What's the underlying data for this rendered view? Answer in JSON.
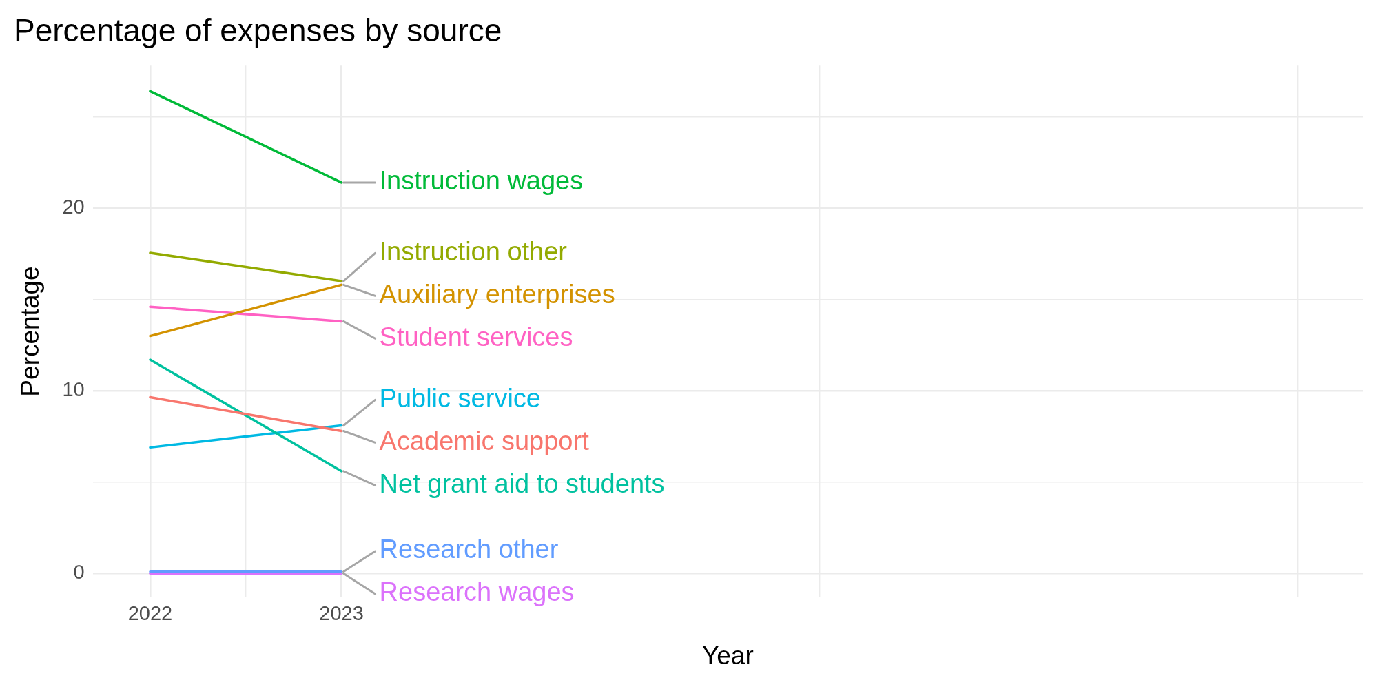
{
  "chart_data": {
    "type": "line",
    "title": "Percentage of expenses by source",
    "xlabel": "Year",
    "ylabel": "Percentage",
    "x": [
      2022,
      2023
    ],
    "xlim": [
      2021.7,
      2028.34
    ],
    "xticks": [
      2022,
      {
        "value": 2022.5,
        "label": null
      },
      2023,
      {
        "value": 2025.5,
        "label": null
      },
      {
        "value": 2028,
        "label": null
      }
    ],
    "ylim": [
      -1.3,
      27.8
    ],
    "yticks": [
      0,
      {
        "value": 5,
        "label": null
      },
      10,
      {
        "value": 15,
        "label": null
      },
      20,
      {
        "value": 25,
        "label": null
      }
    ],
    "grid": true,
    "legend": false,
    "marker": "none",
    "line_style": "solid",
    "series": [
      {
        "name": "Academic support",
        "color": "#f8766d",
        "values": [
          9.65,
          7.8
        ]
      },
      {
        "name": "Auxiliary enterprises",
        "color": "#d39200",
        "values": [
          13.0,
          15.8
        ]
      },
      {
        "name": "Instruction other",
        "color": "#93aa00",
        "values": [
          17.55,
          16.0
        ]
      },
      {
        "name": "Instruction wages",
        "color": "#00ba38",
        "values": [
          26.4,
          21.4
        ]
      },
      {
        "name": "Net grant aid to students",
        "color": "#00c19f",
        "values": [
          11.7,
          5.6
        ]
      },
      {
        "name": "Public service",
        "color": "#00b9e3",
        "values": [
          6.9,
          8.1
        ]
      },
      {
        "name": "Research other",
        "color": "#619cff",
        "values": [
          0.1,
          0.1
        ]
      },
      {
        "name": "Research wages",
        "color": "#db72fb",
        "values": [
          0,
          0
        ]
      },
      {
        "name": "Student services",
        "color": "#ff61c3",
        "values": [
          14.6,
          13.8
        ]
      }
    ]
  }
}
